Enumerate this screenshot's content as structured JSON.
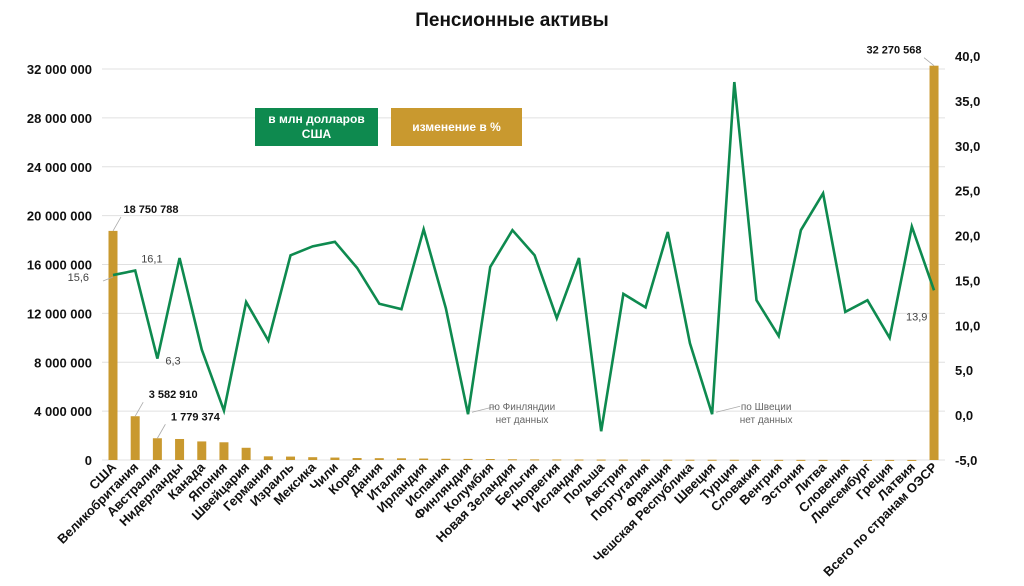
{
  "chart_data": {
    "type": "bar+line",
    "title": "Пенсионные активы",
    "categories": [
      "США",
      "Великобритания",
      "Австралия",
      "Нидерланды",
      "Канада",
      "Япония",
      "Швейцария",
      "Германия",
      "Израиль",
      "Мексика",
      "Чили",
      "Корея",
      "Дания",
      "Италия",
      "Ирландия",
      "Испания",
      "Финляндия",
      "Колумбия",
      "Новая Зеландия",
      "Бельгия",
      "Норвегия",
      "Исландия",
      "Польша",
      "Австрия",
      "Португалия",
      "Франция",
      "Чешская Республика",
      "Швеция",
      "Турция",
      "Словакия",
      "Венгрия",
      "Эстония",
      "Литва",
      "Словения",
      "Люксембург",
      "Греция",
      "Латвия",
      "Всего по странам ОЭСР"
    ],
    "series": [
      {
        "name": "в млн долларов США",
        "type": "bar",
        "axis": "left",
        "color": "#C9992F",
        "values": [
          18750788,
          3582910,
          1779374,
          1720000,
          1520000,
          1450000,
          1000000,
          300000,
          280000,
          230000,
          200000,
          160000,
          150000,
          140000,
          120000,
          100000,
          90000,
          80000,
          60000,
          50000,
          45000,
          40000,
          35000,
          30000,
          28000,
          25000,
          22000,
          20000,
          18000,
          15000,
          12000,
          10000,
          9000,
          8000,
          7000,
          6000,
          5000,
          32270568
        ]
      },
      {
        "name": "изменение в %",
        "type": "line",
        "axis": "right",
        "color": "#0E8A4F",
        "values": [
          15.6,
          16.1,
          6.3,
          17.5,
          7.3,
          0.5,
          12.6,
          8.3,
          17.8,
          18.8,
          19.3,
          16.4,
          12.4,
          11.8,
          20.7,
          11.9,
          0.1,
          16.5,
          20.6,
          17.8,
          10.8,
          17.5,
          -1.8,
          13.5,
          12.0,
          20.4,
          8.0,
          0.1,
          37.1,
          12.8,
          8.8,
          20.6,
          24.7,
          11.5,
          12.8,
          8.6,
          21.0,
          13.9
        ]
      }
    ],
    "left_axis": {
      "min": 0,
      "max": 32000000,
      "step": 4000000,
      "tick_labels": [
        "0",
        "4 000 000",
        "8 000 000",
        "12 000 000",
        "16 000 000",
        "20 000 000",
        "24 000 000",
        "28 000 000",
        "32 000 000"
      ]
    },
    "right_axis": {
      "min": -5,
      "max": 40,
      "step": 5,
      "tick_labels": [
        "-5,0",
        "0,0",
        "5,0",
        "10,0",
        "15,0",
        "20,0",
        "25,0",
        "30,0",
        "35,0",
        "40,0"
      ]
    },
    "grid": true,
    "bar_labels": [
      {
        "index": 0,
        "text": "18 750 788"
      },
      {
        "index": 1,
        "text": "3 582 910"
      },
      {
        "index": 2,
        "text": "1 779 374"
      },
      {
        "index": 37,
        "text": "32 270 568"
      }
    ],
    "line_labels": [
      {
        "index": 0,
        "text": "15,6"
      },
      {
        "index": 1,
        "text": "16,1"
      },
      {
        "index": 2,
        "text": "6,3"
      },
      {
        "index": 37,
        "text": "13,9"
      }
    ],
    "annotations": [
      {
        "index": 16,
        "text1": "по Финляндии",
        "text2": "нет данных"
      },
      {
        "index": 27,
        "text1": "по Швеции",
        "text2": "нет данных"
      }
    ],
    "legend": [
      "в млн долларов США",
      "изменение в %"
    ]
  }
}
